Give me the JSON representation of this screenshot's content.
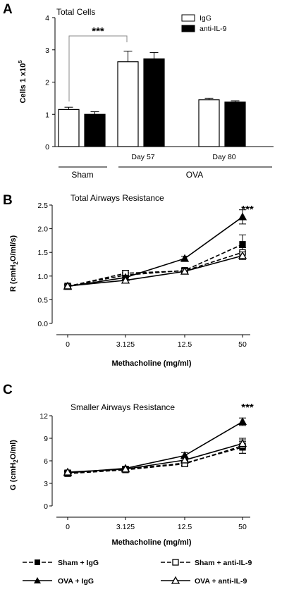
{
  "chart_data": [
    {
      "panel": "A",
      "type": "bar",
      "title": "Total Cells",
      "ylabel": "Cells 1 x10^5",
      "ylabel_base": "Cells 1 x10",
      "ylabel_exp": "5",
      "ylim": [
        0,
        4
      ],
      "yticks": [
        0,
        1,
        2,
        3,
        4
      ],
      "categories": [
        "Sham",
        "Day 57",
        "Day 80"
      ],
      "group_labels": {
        "sham": "Sham",
        "ova": "OVA",
        "day57": "Day 57",
        "day80": "Day 80"
      },
      "series": [
        {
          "name": "IgG",
          "color": "#ffffff",
          "values": [
            1.15,
            2.63,
            1.45
          ],
          "errors": [
            0.07,
            0.33,
            0.05
          ]
        },
        {
          "name": "anti-IL-9",
          "color": "#000000",
          "values": [
            1.0,
            2.72,
            1.38
          ],
          "errors": [
            0.08,
            0.2,
            0.04
          ]
        }
      ],
      "annotation": "***"
    },
    {
      "panel": "B",
      "type": "line",
      "title": "Total Airways Resistance",
      "xlabel": "Methacholine (mg/ml)",
      "ylabel": "R (cmH2O/ml/s)",
      "ylabel_parts": [
        "R (cmH",
        "2",
        "O/ml/s)"
      ],
      "x": [
        "0",
        "3.125",
        "12.5",
        "50"
      ],
      "ylim": [
        0,
        2.5
      ],
      "yticks": [
        "0.0",
        "0.5",
        "1.0",
        "1.5",
        "2.0",
        "2.5"
      ],
      "series": [
        {
          "name": "Sham + IgG",
          "values": [
            0.79,
            1.02,
            1.12,
            1.67
          ],
          "errors": [
            0.03,
            0.05,
            0.05,
            0.2
          ]
        },
        {
          "name": "Sham + anti-IL-9",
          "values": [
            0.78,
            1.06,
            1.11,
            1.5
          ],
          "errors": [
            0.03,
            0.06,
            0.05,
            0.1
          ]
        },
        {
          "name": "OVA + IgG",
          "values": [
            0.78,
            0.97,
            1.37,
            2.25
          ],
          "errors": [
            0.03,
            0.05,
            0.05,
            0.15
          ]
        },
        {
          "name": "OVA + anti-IL-9",
          "values": [
            0.79,
            0.91,
            1.1,
            1.43
          ],
          "errors": [
            0.03,
            0.06,
            0.05,
            0.08
          ]
        }
      ],
      "annotation": "***"
    },
    {
      "panel": "C",
      "type": "line",
      "title": "Smaller Airways Resistance",
      "xlabel": "Methacholine (mg/ml)",
      "ylabel": "G (cmH2O/ml)",
      "ylabel_parts": [
        "G (cmH",
        "2",
        "O/ml)"
      ],
      "x": [
        "0",
        "3.125",
        "12.5",
        "50"
      ],
      "ylim": [
        0,
        12
      ],
      "yticks": [
        "0",
        "3",
        "6",
        "9",
        "12"
      ],
      "series": [
        {
          "name": "Sham + IgG",
          "values": [
            4.4,
            4.9,
            5.7,
            7.8
          ],
          "errors": [
            0.2,
            0.2,
            0.3,
            0.8
          ]
        },
        {
          "name": "Sham + anti-IL-9",
          "values": [
            4.3,
            4.8,
            5.6,
            8.0
          ],
          "errors": [
            0.2,
            0.2,
            0.3,
            1.0
          ]
        },
        {
          "name": "OVA + IgG",
          "values": [
            4.4,
            5.0,
            6.7,
            11.2
          ],
          "errors": [
            0.2,
            0.2,
            0.4,
            0.5
          ]
        },
        {
          "name": "OVA + anti-IL-9",
          "values": [
            4.5,
            4.9,
            6.1,
            8.3
          ],
          "errors": [
            0.2,
            0.2,
            0.3,
            0.5
          ]
        }
      ],
      "annotation": "***"
    }
  ],
  "legend": {
    "sham_igg": "Sham + IgG",
    "sham_anti": "Sham + anti-IL-9",
    "ova_igg": "OVA  + IgG",
    "ova_anti": "OVA  + anti-IL-9"
  }
}
